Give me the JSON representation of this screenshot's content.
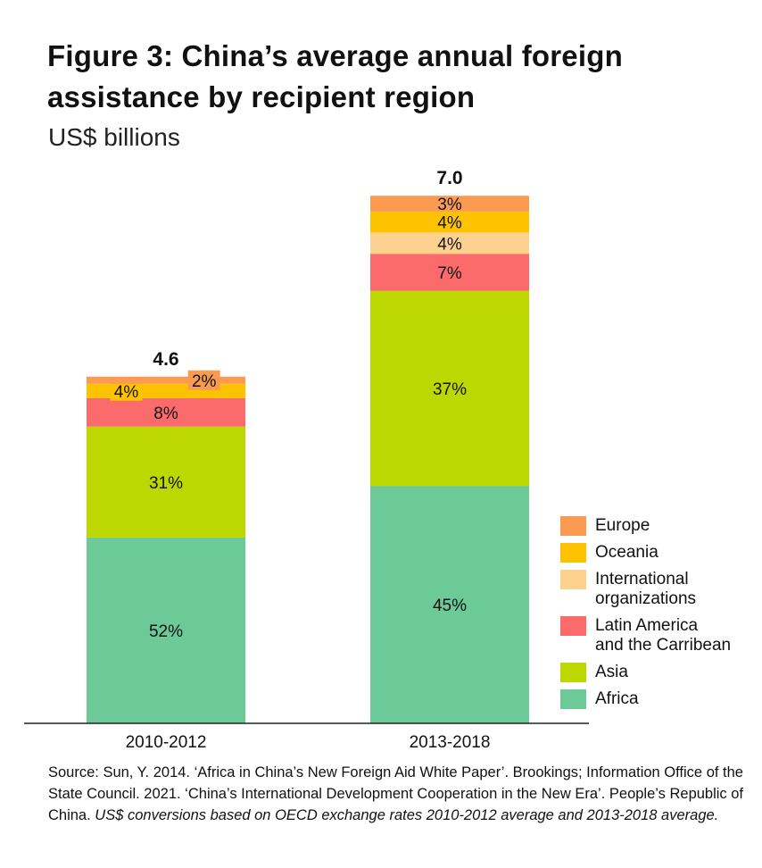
{
  "title": "Figure 3: China’s average annual foreign assistance by recipient region",
  "subtitle": "US$ billions",
  "chart_data": {
    "type": "bar",
    "stacked": true,
    "title": "Figure 3: China’s average annual foreign assistance by recipient region",
    "ylabel": "US$ billions",
    "categories": [
      "2010-2012",
      "2013-2018"
    ],
    "totals": [
      4.6,
      7.0
    ],
    "total_labels": [
      "4.6",
      "7.0"
    ],
    "series": [
      {
        "name": "Africa",
        "color": "#6cc998",
        "percent": [
          52,
          45
        ],
        "labels": [
          "52%",
          "45%"
        ]
      },
      {
        "name": "Asia",
        "color": "#bdd800",
        "percent": [
          31,
          37
        ],
        "labels": [
          "31%",
          "37%"
        ]
      },
      {
        "name": "Latin America\nand the Carribean",
        "color": "#fc6b6b",
        "percent": [
          8,
          7
        ],
        "labels": [
          "8%",
          "7%"
        ]
      },
      {
        "name": "International\n organizations",
        "color": "#fdd28f",
        "percent": [
          0,
          4
        ],
        "labels": [
          "",
          "4%"
        ]
      },
      {
        "name": "Oceania",
        "color": "#fdc300",
        "percent": [
          4,
          4
        ],
        "labels": [
          "4%",
          "4%"
        ]
      },
      {
        "name": "Europe",
        "color": "#fb9b51",
        "percent": [
          2,
          3
        ],
        "labels": [
          "2%",
          "3%"
        ]
      }
    ],
    "legend_order": [
      "Europe",
      "Oceania",
      "International\n organizations",
      "Latin America\nand the Carribean",
      "Asia",
      "Africa"
    ],
    "legend_position": "right"
  },
  "source": {
    "text": "Source: Sun, Y. 2014. ‘Africa in China’s New Foreign Aid White Paper’. Brookings; Information Office of the State Council. 2021. ‘China’s International Development Cooperation in the New Era’. People’s Republic of China. ",
    "italic": "US$ conversions based on OECD exchange rates 2010-2012 average and 2013-2018 average."
  }
}
